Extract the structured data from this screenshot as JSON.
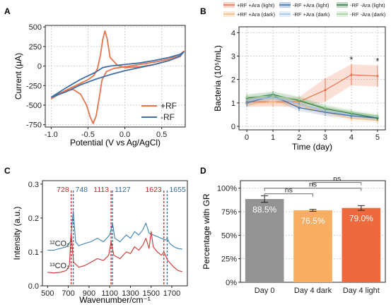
{
  "chart_data": [
    {
      "panel": "A",
      "type": "line",
      "xlabel": "Potential (V vs Ag/AgCl)",
      "ylabel": "Current (μA)",
      "xlim": [
        -1.08,
        0.82
      ],
      "ylim": [
        -780,
        520
      ],
      "xticks": [
        -1.0,
        -0.5,
        0.0,
        0.5
      ],
      "xtick_labels": [
        "-1.0",
        "-0.5",
        "0.0",
        "0.5"
      ],
      "yticks": [
        -750,
        -500,
        -250,
        0,
        250,
        500
      ],
      "ytick_labels": [
        "-750",
        "-500",
        "-250",
        "0",
        "250",
        "500"
      ],
      "grid": true,
      "legend_position": "bottom-right",
      "series": [
        {
          "name": "+RF",
          "color": "#e8734a",
          "x": [
            -1.0,
            -0.8,
            -0.6,
            -0.5,
            -0.42,
            -0.37,
            -0.33,
            -0.3,
            -0.27,
            -0.24,
            -0.2,
            -0.1,
            0.0,
            0.2,
            0.4,
            0.6,
            0.75,
            0.8,
            0.75,
            0.6,
            0.4,
            0.2,
            0.0,
            -0.15,
            -0.25,
            -0.31,
            -0.35,
            -0.39,
            -0.43,
            -0.47,
            -0.52,
            -0.6,
            -0.7,
            -0.8,
            -0.9,
            -1.0
          ],
          "y": [
            -420,
            -310,
            -220,
            -175,
            -120,
            -30,
            150,
            340,
            450,
            350,
            110,
            10,
            -20,
            -10,
            20,
            70,
            120,
            190,
            150,
            90,
            50,
            20,
            -10,
            -30,
            -70,
            -180,
            -420,
            -640,
            -735,
            -650,
            -500,
            -360,
            -300,
            -320,
            -350,
            -420
          ]
        },
        {
          "name": "-RF",
          "color": "#3c6ea8",
          "x": [
            -1.0,
            -0.8,
            -0.6,
            -0.4,
            -0.3,
            -0.2,
            0.0,
            0.2,
            0.4,
            0.6,
            0.75,
            0.8,
            0.75,
            0.6,
            0.4,
            0.2,
            0.0,
            -0.2,
            -0.4,
            -0.6,
            -0.8,
            -1.0
          ],
          "y": [
            -400,
            -280,
            -170,
            -80,
            -20,
            0,
            20,
            40,
            70,
            110,
            150,
            180,
            130,
            70,
            20,
            -20,
            -60,
            -110,
            -170,
            -240,
            -330,
            -400
          ]
        }
      ]
    },
    {
      "panel": "B",
      "type": "line",
      "xlabel": "Time (day)",
      "ylabel": "Bacteria (10⁵/mL)",
      "xlim": [
        -0.3,
        5.3
      ],
      "ylim": [
        -0.15,
        4.25
      ],
      "xticks": [
        0,
        1,
        2,
        3,
        4,
        5
      ],
      "xtick_labels": [
        "0",
        "1",
        "2",
        "3",
        "4",
        "5"
      ],
      "yticks": [
        0,
        1,
        2,
        3,
        4
      ],
      "ytick_labels": [
        "0",
        "1",
        "2",
        "3",
        "4"
      ],
      "grid": true,
      "legend_position": "top",
      "x": [
        0,
        1,
        2,
        3,
        4,
        5
      ],
      "significance": [
        {
          "x": 4,
          "label": "*"
        },
        {
          "x": 5,
          "label": "*"
        }
      ],
      "series": [
        {
          "name": "+RF +Ara (light)",
          "color": "#e8734a",
          "values": [
            1.05,
            1.05,
            1.05,
            1.55,
            2.2,
            2.15
          ],
          "err": [
            0.2,
            0.2,
            0.2,
            0.5,
            0.45,
            0.45
          ]
        },
        {
          "name": "+RF +Ara (dark)",
          "color": "#f5b87a",
          "values": [
            0.95,
            1.05,
            0.9,
            0.6,
            0.35,
            0.25
          ],
          "err": [
            0.15,
            0.15,
            0.15,
            0.15,
            0.12,
            0.1
          ]
        },
        {
          "name": "-RF +Ara (light)",
          "color": "#3c6ea8",
          "values": [
            1.0,
            1.3,
            0.8,
            0.6,
            0.45,
            0.35
          ],
          "err": [
            0.15,
            0.15,
            0.15,
            0.15,
            0.12,
            0.1
          ]
        },
        {
          "name": "-RF +Ara (dark)",
          "color": "#9fc2e6",
          "values": [
            1.1,
            1.25,
            0.95,
            0.65,
            0.5,
            0.4
          ],
          "err": [
            0.15,
            0.15,
            0.15,
            0.15,
            0.12,
            0.1
          ]
        },
        {
          "name": "-RF -Ara (light)",
          "color": "#2f7a3e",
          "values": [
            1.2,
            1.35,
            1.1,
            0.75,
            0.55,
            0.35
          ],
          "err": [
            0.15,
            0.15,
            0.15,
            0.15,
            0.12,
            0.1
          ]
        },
        {
          "name": "-RF -Ara (dark)",
          "color": "#9ccc96",
          "values": [
            1.25,
            1.3,
            1.15,
            0.8,
            0.6,
            0.45
          ],
          "err": [
            0.15,
            0.15,
            0.15,
            0.15,
            0.12,
            0.1
          ]
        }
      ]
    },
    {
      "panel": "C",
      "type": "line",
      "xlabel": "Wavenumber/cm⁻¹",
      "ylabel": "Intensity (a.u.)",
      "xlim": [
        450,
        1850
      ],
      "ylim": [
        0,
        0.31
      ],
      "xticks": [
        500,
        700,
        900,
        1100,
        1300,
        1500,
        1700
      ],
      "xtick_labels": [
        "500",
        "700",
        "900",
        "1100",
        "1300",
        "1500",
        "1700"
      ],
      "yticks": [
        0.0,
        0.1,
        0.2,
        0.3
      ],
      "ytick_labels": [
        "0.0",
        "0.1",
        "0.2",
        "0.3"
      ],
      "grid": false,
      "reference_lines": [
        {
          "x": 728,
          "label": "728",
          "color": "#c8282a"
        },
        {
          "x": 748,
          "label": "748",
          "color": "#2f6ca3"
        },
        {
          "x": 1113,
          "label": "1113",
          "color": "#c8282a"
        },
        {
          "x": 1127,
          "label": "1127",
          "color": "#2f6ca3"
        },
        {
          "x": 1623,
          "label": "1623",
          "color": "#c8282a"
        },
        {
          "x": 1655,
          "label": "1655",
          "color": "#2f6ca3"
        }
      ],
      "series": [
        {
          "name": "¹²CO₂",
          "color": "#3c7fb3",
          "x": [
            500,
            560,
            620,
            680,
            720,
            748,
            770,
            800,
            860,
            920,
            980,
            1040,
            1100,
            1127,
            1150,
            1200,
            1260,
            1300,
            1340,
            1380,
            1420,
            1450,
            1480,
            1520,
            1560,
            1600,
            1640,
            1655,
            1680,
            1720,
            1760,
            1800
          ],
          "y": [
            0.105,
            0.105,
            0.11,
            0.115,
            0.13,
            0.22,
            0.13,
            0.118,
            0.125,
            0.13,
            0.14,
            0.13,
            0.15,
            0.185,
            0.14,
            0.13,
            0.15,
            0.14,
            0.16,
            0.15,
            0.165,
            0.185,
            0.155,
            0.15,
            0.145,
            0.14,
            0.135,
            0.14,
            0.125,
            0.115,
            0.11,
            0.108
          ]
        },
        {
          "name": "¹³CO₂",
          "color": "#d0302d",
          "x": [
            500,
            560,
            620,
            680,
            710,
            728,
            750,
            800,
            860,
            920,
            980,
            1040,
            1090,
            1113,
            1140,
            1200,
            1260,
            1300,
            1340,
            1380,
            1420,
            1450,
            1480,
            1500,
            1520,
            1560,
            1600,
            1623,
            1660,
            1720,
            1760,
            1800
          ],
          "y": [
            0.04,
            0.038,
            0.04,
            0.045,
            0.06,
            0.155,
            0.07,
            0.055,
            0.06,
            0.07,
            0.08,
            0.075,
            0.09,
            0.13,
            0.09,
            0.08,
            0.1,
            0.095,
            0.115,
            0.105,
            0.12,
            0.14,
            0.11,
            0.16,
            0.115,
            0.1,
            0.09,
            0.1,
            0.075,
            0.055,
            0.045,
            0.042
          ]
        }
      ]
    },
    {
      "panel": "D",
      "type": "bar",
      "ylabel": "Percentage with GR",
      "categories": [
        "Day 0",
        "Day 4 dark",
        "Day 4 light"
      ],
      "values": [
        88.5,
        76.5,
        79.0
      ],
      "errors": [
        3.5,
        1.0,
        2.5
      ],
      "value_labels": [
        "88.5%",
        "76.5%",
        "79.0%"
      ],
      "colors": [
        "#939393",
        "#f7ad62",
        "#ee6a3e"
      ],
      "ylim": [
        0,
        108
      ],
      "yticks": [
        0,
        25,
        50,
        75,
        100
      ],
      "ytick_labels": [
        "0%",
        "25%",
        "50%",
        "75%",
        "100%"
      ],
      "grid": true,
      "comparisons": [
        {
          "from": 0,
          "to": 1,
          "label": "ns",
          "level": 94
        },
        {
          "from": 0,
          "to": 2,
          "label": "ns",
          "level": 100
        },
        {
          "from": 1,
          "to": 2,
          "label": "ns",
          "level": 106
        }
      ]
    }
  ]
}
